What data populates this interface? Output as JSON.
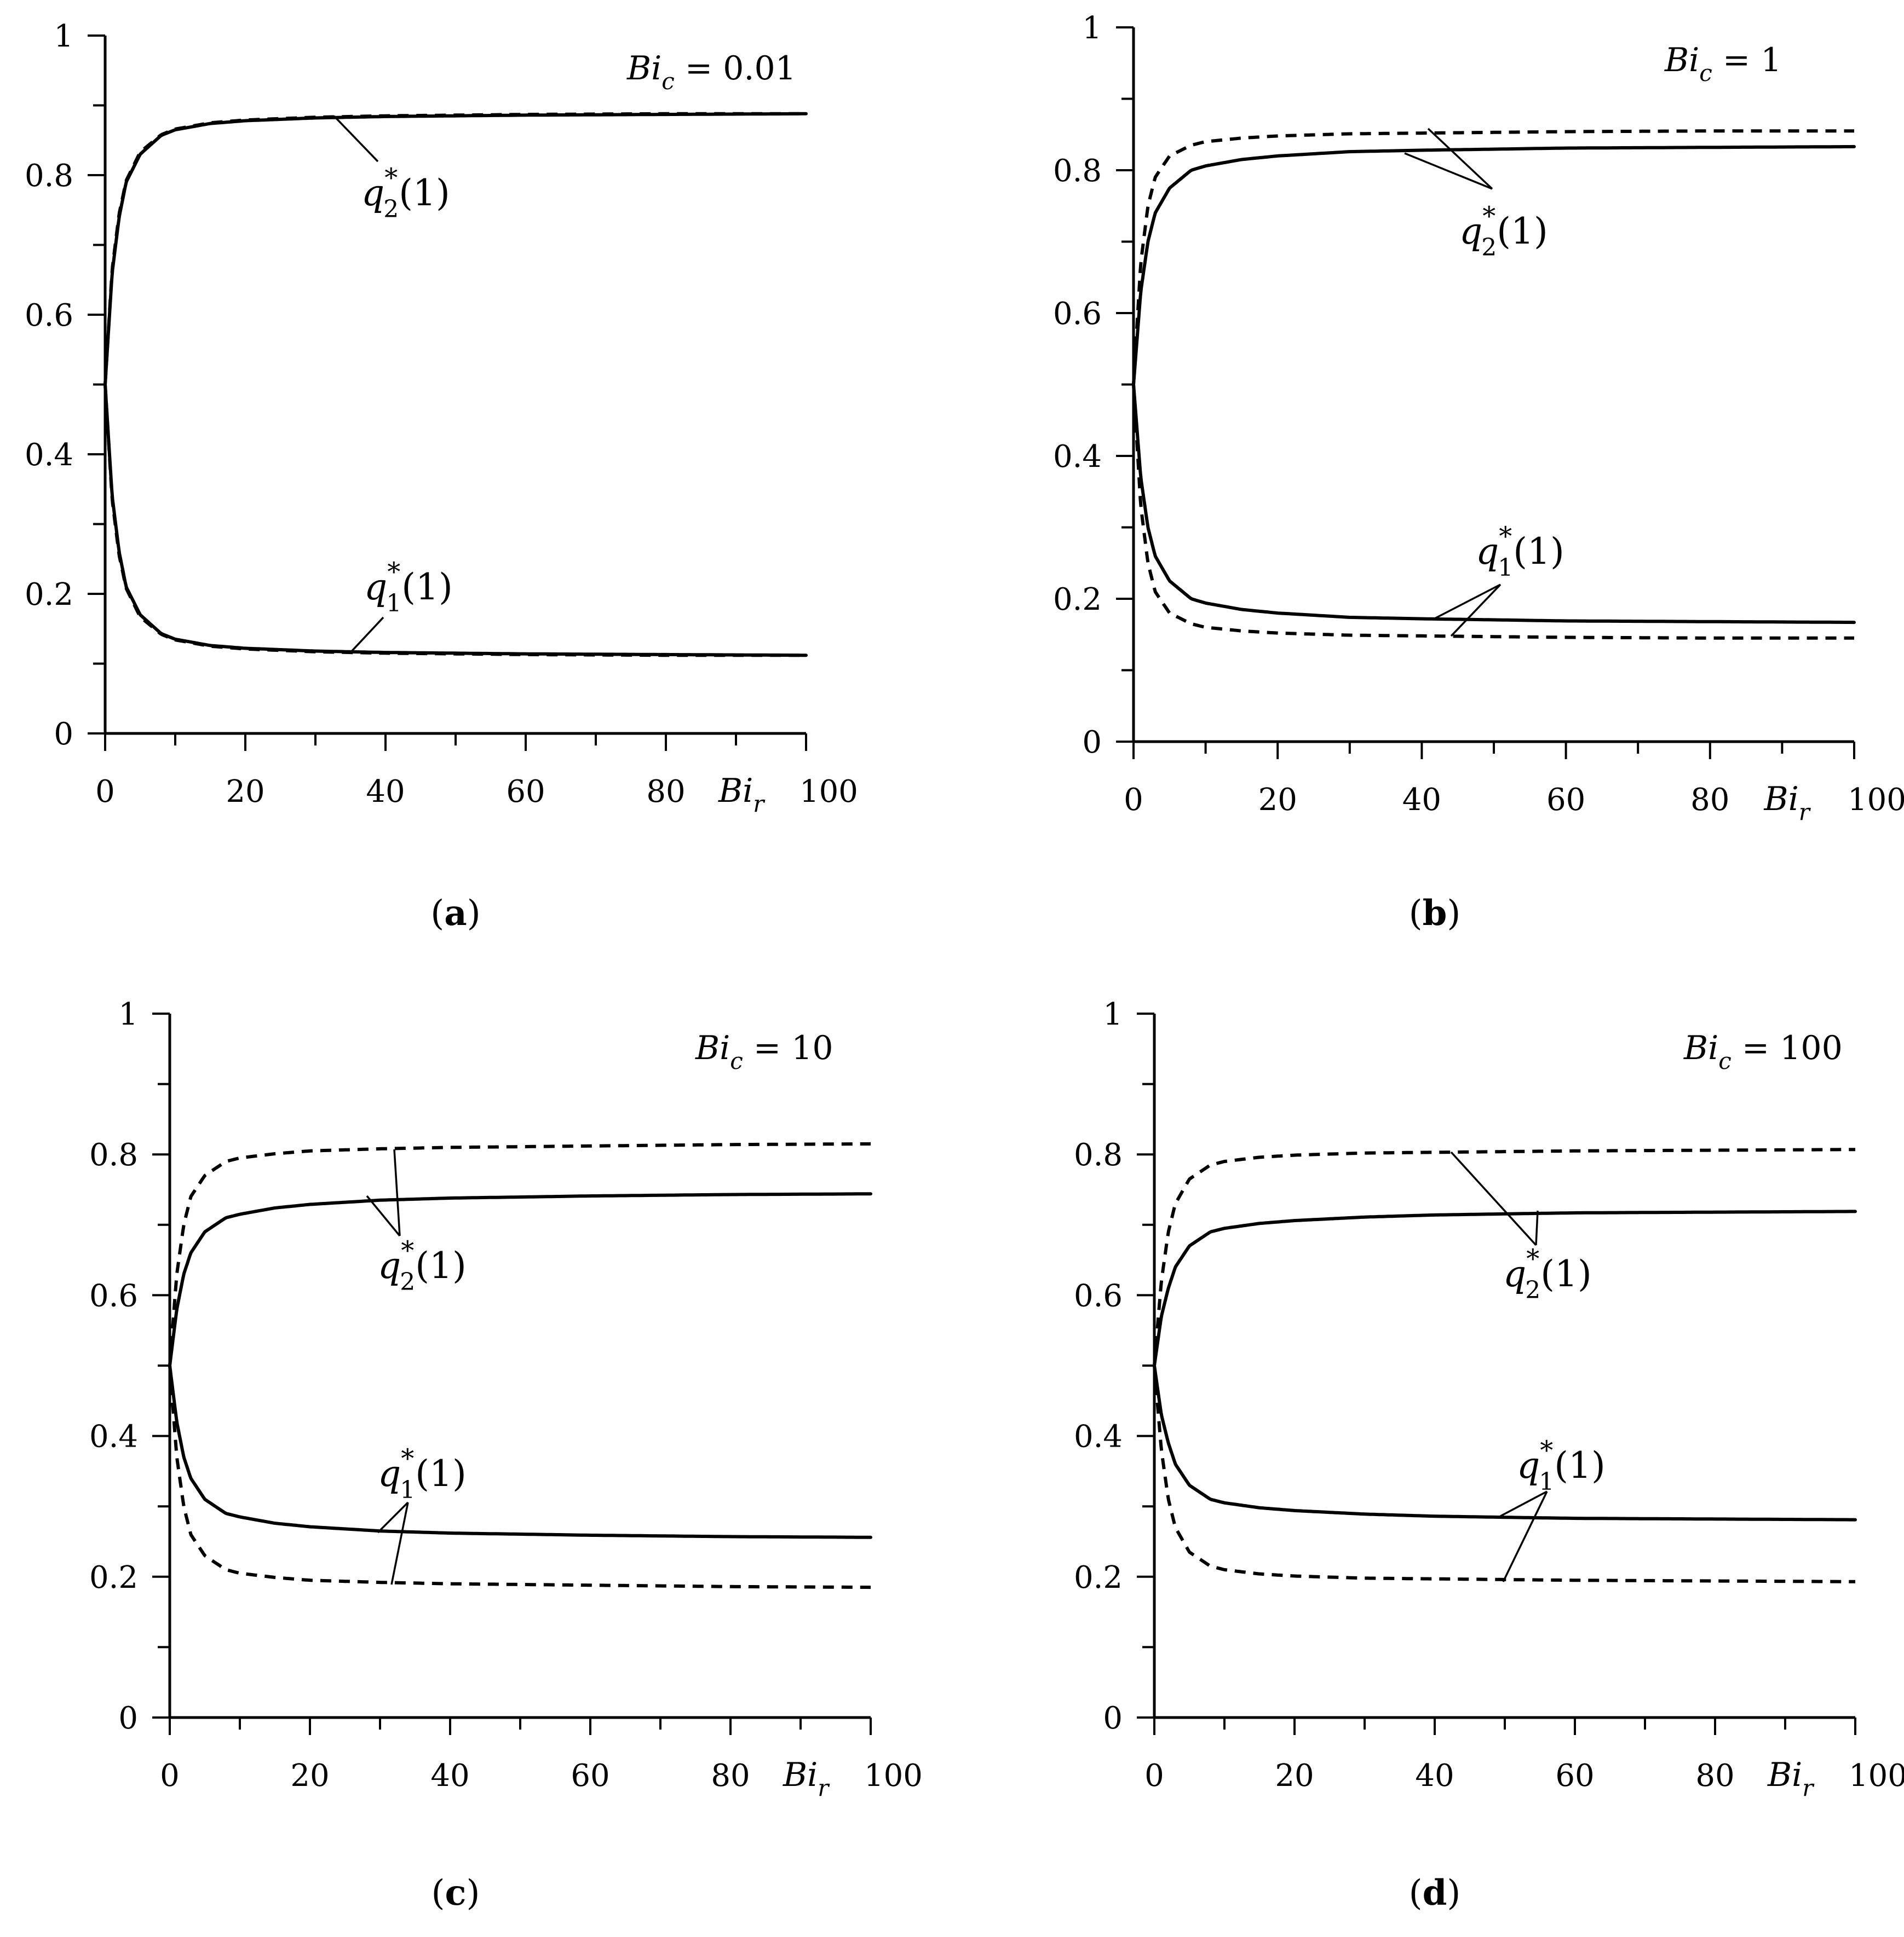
{
  "chart_data": [
    {
      "panel": "a",
      "type": "line",
      "param": {
        "base": "Bi",
        "sub": "c",
        "value": "0.01"
      },
      "xlabel": {
        "base": "Bi",
        "sub": "r"
      },
      "xlim": [
        0,
        100
      ],
      "ylim": [
        0,
        1
      ],
      "xticks": [
        "0",
        "20",
        "40",
        "60",
        "80",
        "100"
      ],
      "yticks": [
        "0",
        "0.2",
        "0.4",
        "0.6",
        "0.8",
        "1"
      ],
      "series": [
        {
          "label": {
            "base": "q",
            "sup": "*",
            "sub": "2",
            "arg": "(1)"
          },
          "style": "solid",
          "x": [
            0,
            1,
            2,
            3,
            5,
            8,
            10,
            15,
            20,
            30,
            40,
            60,
            80,
            100
          ],
          "y": [
            0.5,
            0.66,
            0.74,
            0.79,
            0.83,
            0.857,
            0.865,
            0.874,
            0.878,
            0.882,
            0.884,
            0.886,
            0.887,
            0.888
          ]
        },
        {
          "label": "",
          "style": "dashed",
          "x": [
            0,
            1,
            2,
            3,
            5,
            8,
            10,
            15,
            20,
            30,
            40,
            60,
            80,
            100
          ],
          "y": [
            0.5,
            0.665,
            0.745,
            0.792,
            0.833,
            0.858,
            0.866,
            0.875,
            0.879,
            0.883,
            0.885,
            0.887,
            0.888,
            0.888
          ]
        },
        {
          "label": {
            "base": "q",
            "sup": "*",
            "sub": "1",
            "arg": "(1)"
          },
          "style": "solid",
          "x": [
            0,
            1,
            2,
            3,
            5,
            8,
            10,
            15,
            20,
            30,
            40,
            60,
            80,
            100
          ],
          "y": [
            0.5,
            0.34,
            0.26,
            0.21,
            0.17,
            0.143,
            0.135,
            0.126,
            0.122,
            0.118,
            0.116,
            0.114,
            0.113,
            0.112
          ]
        },
        {
          "label": "",
          "style": "dashed",
          "x": [
            0,
            1,
            2,
            3,
            5,
            8,
            10,
            15,
            20,
            30,
            40,
            60,
            80,
            100
          ],
          "y": [
            0.5,
            0.335,
            0.255,
            0.208,
            0.167,
            0.142,
            0.134,
            0.125,
            0.121,
            0.117,
            0.115,
            0.113,
            0.112,
            0.112
          ]
        }
      ]
    },
    {
      "panel": "b",
      "type": "line",
      "param": {
        "base": "Bi",
        "sub": "c",
        "value": "1"
      },
      "xlabel": {
        "base": "Bi",
        "sub": "r"
      },
      "xlim": [
        0,
        100
      ],
      "ylim": [
        0,
        1
      ],
      "xticks": [
        "0",
        "20",
        "40",
        "60",
        "80",
        "100"
      ],
      "yticks": [
        "0",
        "0.2",
        "0.4",
        "0.6",
        "0.8",
        "1"
      ],
      "series": [
        {
          "label": {
            "base": "q",
            "sup": "*",
            "sub": "2",
            "arg": "(1)"
          },
          "style": "solid",
          "x": [
            0,
            1,
            2,
            3,
            5,
            8,
            10,
            15,
            20,
            30,
            40,
            60,
            80,
            100
          ],
          "y": [
            0.5,
            0.63,
            0.7,
            0.74,
            0.775,
            0.8,
            0.806,
            0.815,
            0.82,
            0.826,
            0.828,
            0.831,
            0.832,
            0.833
          ]
        },
        {
          "label": "",
          "style": "dashed",
          "x": [
            0,
            1,
            2,
            3,
            5,
            8,
            10,
            15,
            20,
            30,
            40,
            60,
            80,
            100
          ],
          "y": [
            0.5,
            0.67,
            0.75,
            0.79,
            0.82,
            0.835,
            0.84,
            0.845,
            0.848,
            0.851,
            0.852,
            0.854,
            0.855,
            0.855
          ]
        },
        {
          "label": {
            "base": "q",
            "sup": "*",
            "sub": "1",
            "arg": "(1)"
          },
          "style": "solid",
          "x": [
            0,
            1,
            2,
            3,
            5,
            8,
            10,
            15,
            20,
            30,
            40,
            60,
            80,
            100
          ],
          "y": [
            0.5,
            0.37,
            0.3,
            0.26,
            0.225,
            0.2,
            0.194,
            0.185,
            0.18,
            0.174,
            0.172,
            0.169,
            0.168,
            0.167
          ]
        },
        {
          "label": "",
          "style": "dashed",
          "x": [
            0,
            1,
            2,
            3,
            5,
            8,
            10,
            15,
            20,
            30,
            40,
            60,
            80,
            100
          ],
          "y": [
            0.5,
            0.33,
            0.25,
            0.21,
            0.18,
            0.165,
            0.16,
            0.155,
            0.152,
            0.149,
            0.148,
            0.146,
            0.145,
            0.145
          ]
        }
      ]
    },
    {
      "panel": "c",
      "type": "line",
      "param": {
        "base": "Bi",
        "sub": "c",
        "value": "10"
      },
      "xlabel": {
        "base": "Bi",
        "sub": "r"
      },
      "xlim": [
        0,
        100
      ],
      "ylim": [
        0,
        1
      ],
      "xticks": [
        "0",
        "20",
        "40",
        "60",
        "80",
        "100"
      ],
      "yticks": [
        "0",
        "0.2",
        "0.4",
        "0.6",
        "0.8",
        "1"
      ],
      "series": [
        {
          "label": {
            "base": "q",
            "sup": "*",
            "sub": "2",
            "arg": "(1)"
          },
          "style": "solid",
          "x": [
            0,
            1,
            2,
            3,
            5,
            8,
            10,
            15,
            20,
            30,
            40,
            60,
            80,
            100
          ],
          "y": [
            0.5,
            0.58,
            0.63,
            0.66,
            0.69,
            0.71,
            0.715,
            0.724,
            0.729,
            0.735,
            0.738,
            0.741,
            0.743,
            0.744
          ]
        },
        {
          "label": "",
          "style": "dashed",
          "x": [
            0,
            1,
            2,
            3,
            5,
            8,
            10,
            15,
            20,
            30,
            40,
            60,
            80,
            100
          ],
          "y": [
            0.5,
            0.63,
            0.7,
            0.74,
            0.77,
            0.79,
            0.795,
            0.801,
            0.805,
            0.808,
            0.81,
            0.812,
            0.814,
            0.815
          ]
        },
        {
          "label": {
            "base": "q",
            "sup": "*",
            "sub": "1",
            "arg": "(1)"
          },
          "style": "solid",
          "x": [
            0,
            1,
            2,
            3,
            5,
            8,
            10,
            15,
            20,
            30,
            40,
            60,
            80,
            100
          ],
          "y": [
            0.5,
            0.42,
            0.37,
            0.34,
            0.31,
            0.29,
            0.285,
            0.276,
            0.271,
            0.265,
            0.262,
            0.259,
            0.257,
            0.256
          ]
        },
        {
          "label": "",
          "style": "dashed",
          "x": [
            0,
            1,
            2,
            3,
            5,
            8,
            10,
            15,
            20,
            30,
            40,
            60,
            80,
            100
          ],
          "y": [
            0.5,
            0.37,
            0.3,
            0.26,
            0.23,
            0.21,
            0.205,
            0.199,
            0.195,
            0.192,
            0.19,
            0.188,
            0.186,
            0.185
          ]
        }
      ]
    },
    {
      "panel": "d",
      "type": "line",
      "param": {
        "base": "Bi",
        "sub": "c",
        "value": "100"
      },
      "xlabel": {
        "base": "Bi",
        "sub": "r"
      },
      "xlim": [
        0,
        100
      ],
      "ylim": [
        0,
        1
      ],
      "xticks": [
        "0",
        "20",
        "40",
        "60",
        "80",
        "100"
      ],
      "yticks": [
        "0",
        "0.2",
        "0.4",
        "0.6",
        "0.8",
        "1"
      ],
      "series": [
        {
          "label": {
            "base": "q",
            "sup": "*",
            "sub": "2",
            "arg": "(1)"
          },
          "style": "solid",
          "x": [
            0,
            1,
            2,
            3,
            5,
            8,
            10,
            15,
            20,
            30,
            40,
            60,
            80,
            100
          ],
          "y": [
            0.5,
            0.57,
            0.61,
            0.64,
            0.67,
            0.69,
            0.695,
            0.702,
            0.706,
            0.711,
            0.714,
            0.717,
            0.718,
            0.719
          ]
        },
        {
          "label": "",
          "style": "dashed",
          "x": [
            0,
            1,
            2,
            3,
            5,
            8,
            10,
            15,
            20,
            30,
            40,
            60,
            80,
            100
          ],
          "y": [
            0.5,
            0.62,
            0.69,
            0.73,
            0.765,
            0.785,
            0.79,
            0.796,
            0.799,
            0.802,
            0.803,
            0.805,
            0.806,
            0.807
          ]
        },
        {
          "label": {
            "base": "q",
            "sup": "*",
            "sub": "1",
            "arg": "(1)"
          },
          "style": "solid",
          "x": [
            0,
            1,
            2,
            3,
            5,
            8,
            10,
            15,
            20,
            30,
            40,
            60,
            80,
            100
          ],
          "y": [
            0.5,
            0.43,
            0.39,
            0.36,
            0.33,
            0.31,
            0.305,
            0.298,
            0.294,
            0.289,
            0.286,
            0.283,
            0.282,
            0.281
          ]
        },
        {
          "label": "",
          "style": "dashed",
          "x": [
            0,
            1,
            2,
            3,
            5,
            8,
            10,
            15,
            20,
            30,
            40,
            60,
            80,
            100
          ],
          "y": [
            0.5,
            0.38,
            0.31,
            0.27,
            0.235,
            0.215,
            0.21,
            0.204,
            0.201,
            0.198,
            0.197,
            0.195,
            0.194,
            0.193
          ]
        }
      ]
    }
  ]
}
